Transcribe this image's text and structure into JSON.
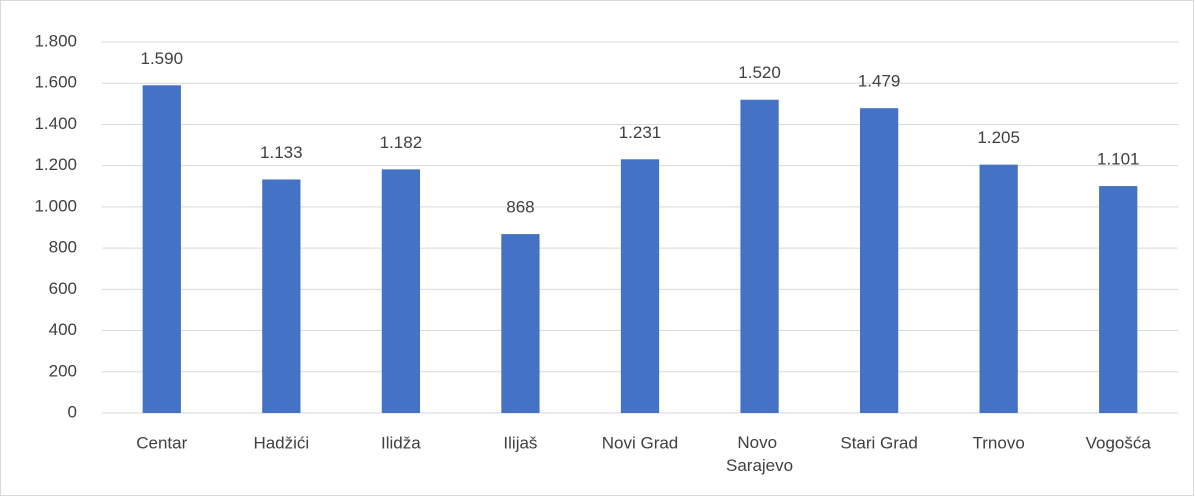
{
  "chart_data": {
    "type": "bar",
    "categories": [
      "Centar",
      "Hadžići",
      "Ilidža",
      "Ilijaš",
      "Novi Grad",
      "Novo Sarajevo",
      "Stari Grad",
      "Trnovo",
      "Vogošća"
    ],
    "values": [
      1590,
      1133,
      1182,
      868,
      1231,
      1520,
      1479,
      1205,
      1101
    ],
    "value_labels": [
      "1.590",
      "1.133",
      "1.182",
      "868",
      "1.231",
      "1.520",
      "1.479",
      "1.205",
      "1.101"
    ],
    "color": "#4472c4",
    "ylim": [
      0,
      1800
    ],
    "yticks": [
      0,
      200,
      400,
      600,
      800,
      {
        "value": 1000,
        "label": "1.000"
      },
      {
        "value": 1200,
        "label": "1.200"
      },
      {
        "value": 1400,
        "label": "1.400"
      },
      {
        "value": 1600,
        "label": "1.600"
      },
      {
        "value": 1800,
        "label": "1.800"
      }
    ],
    "grid": true
  }
}
